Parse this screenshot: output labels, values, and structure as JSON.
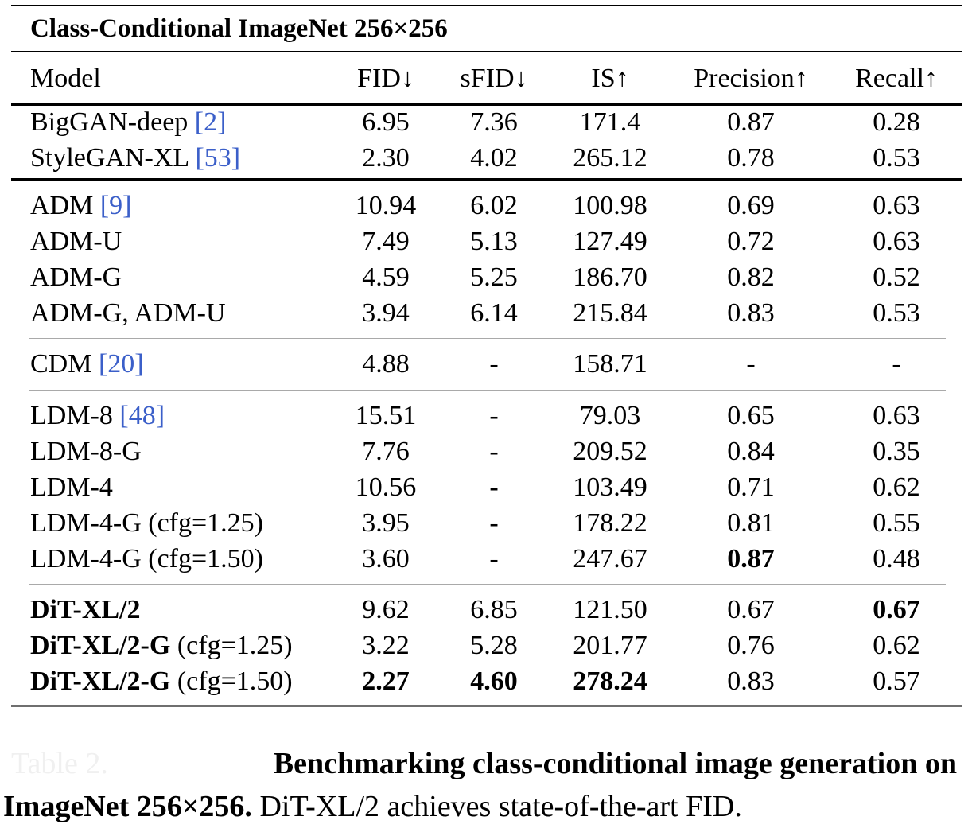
{
  "table": {
    "title": "Class-Conditional ImageNet 256×256",
    "columns": [
      "Model",
      "FID↓",
      "sFID↓",
      "IS↑",
      "Precision↑",
      "Recall↑"
    ],
    "groups": [
      [
        {
          "name": "BigGAN-deep ",
          "ref": "[2]",
          "name_bold": false,
          "name_suffix": "",
          "fid": "6.95",
          "sfid": "7.36",
          "is": "171.4",
          "precision": "0.87",
          "recall": "0.28"
        },
        {
          "name": "StyleGAN-XL ",
          "ref": "[53]",
          "name_bold": false,
          "name_suffix": "",
          "fid": "2.30",
          "sfid": "4.02",
          "is": "265.12",
          "precision": "0.78",
          "recall": "0.53"
        }
      ],
      [
        {
          "name": "ADM ",
          "ref": "[9]",
          "name_bold": false,
          "name_suffix": "",
          "fid": "10.94",
          "sfid": "6.02",
          "is": "100.98",
          "precision": "0.69",
          "recall": "0.63"
        },
        {
          "name": "ADM-U",
          "ref": "",
          "name_bold": false,
          "name_suffix": "",
          "fid": "7.49",
          "sfid": "5.13",
          "is": "127.49",
          "precision": "0.72",
          "recall": "0.63"
        },
        {
          "name": "ADM-G",
          "ref": "",
          "name_bold": false,
          "name_suffix": "",
          "fid": "4.59",
          "sfid": "5.25",
          "is": "186.70",
          "precision": "0.82",
          "recall": "0.52"
        },
        {
          "name": "ADM-G, ADM-U",
          "ref": "",
          "name_bold": false,
          "name_suffix": "",
          "fid": "3.94",
          "sfid": "6.14",
          "is": "215.84",
          "precision": "0.83",
          "recall": "0.53"
        }
      ],
      [
        {
          "name": "CDM ",
          "ref": "[20]",
          "name_bold": false,
          "name_suffix": "",
          "fid": "4.88",
          "sfid": "-",
          "is": "158.71",
          "precision": "-",
          "recall": "-"
        }
      ],
      [
        {
          "name": "LDM-8 ",
          "ref": "[48]",
          "name_bold": false,
          "name_suffix": "",
          "fid": "15.51",
          "sfid": "-",
          "is": "79.03",
          "precision": "0.65",
          "recall": "0.63"
        },
        {
          "name": "LDM-8-G",
          "ref": "",
          "name_bold": false,
          "name_suffix": "",
          "fid": "7.76",
          "sfid": "-",
          "is": "209.52",
          "precision": "0.84",
          "recall": "0.35"
        },
        {
          "name": "LDM-4",
          "ref": "",
          "name_bold": false,
          "name_suffix": "",
          "fid": "10.56",
          "sfid": "-",
          "is": "103.49",
          "precision": "0.71",
          "recall": "0.62"
        },
        {
          "name": "LDM-4-G (cfg=1.25)",
          "ref": "",
          "name_bold": false,
          "name_suffix": "",
          "fid": "3.95",
          "sfid": "-",
          "is": "178.22",
          "precision": "0.81",
          "recall": "0.55"
        },
        {
          "name": "LDM-4-G (cfg=1.50)",
          "ref": "",
          "name_bold": false,
          "name_suffix": "",
          "fid": "3.60",
          "sfid": "-",
          "is": "247.67",
          "precision": "0.87",
          "recall": "0.48",
          "bold": [
            "precision"
          ]
        }
      ],
      [
        {
          "name": "DiT-XL/2",
          "ref": "",
          "name_bold": true,
          "name_suffix": "",
          "fid": "9.62",
          "sfid": "6.85",
          "is": "121.50",
          "precision": "0.67",
          "recall": "0.67",
          "bold": [
            "recall"
          ]
        },
        {
          "name": "DiT-XL/2-G",
          "ref": "",
          "name_bold": true,
          "name_suffix": " (cfg=1.25)",
          "fid": "3.22",
          "sfid": "5.28",
          "is": "201.77",
          "precision": "0.76",
          "recall": "0.62"
        },
        {
          "name": "DiT-XL/2-G",
          "ref": "",
          "name_bold": true,
          "name_suffix": " (cfg=1.50)",
          "fid": "2.27",
          "sfid": "4.60",
          "is": "278.24",
          "precision": "0.83",
          "recall": "0.57",
          "bold": [
            "fid",
            "sfid",
            "is"
          ]
        }
      ]
    ]
  },
  "caption": {
    "label": "Table 2.",
    "bold_part_line1": "Benchmarking class-conditional image generation on",
    "bold_part_line2": "ImageNet 256×256.",
    "rest": " DiT-XL/2 achieves state-of-the-art FID."
  },
  "colors": {
    "reference_link": "#3b5fc9",
    "rule": "#000000",
    "group_separator": "#a9a9a9"
  }
}
